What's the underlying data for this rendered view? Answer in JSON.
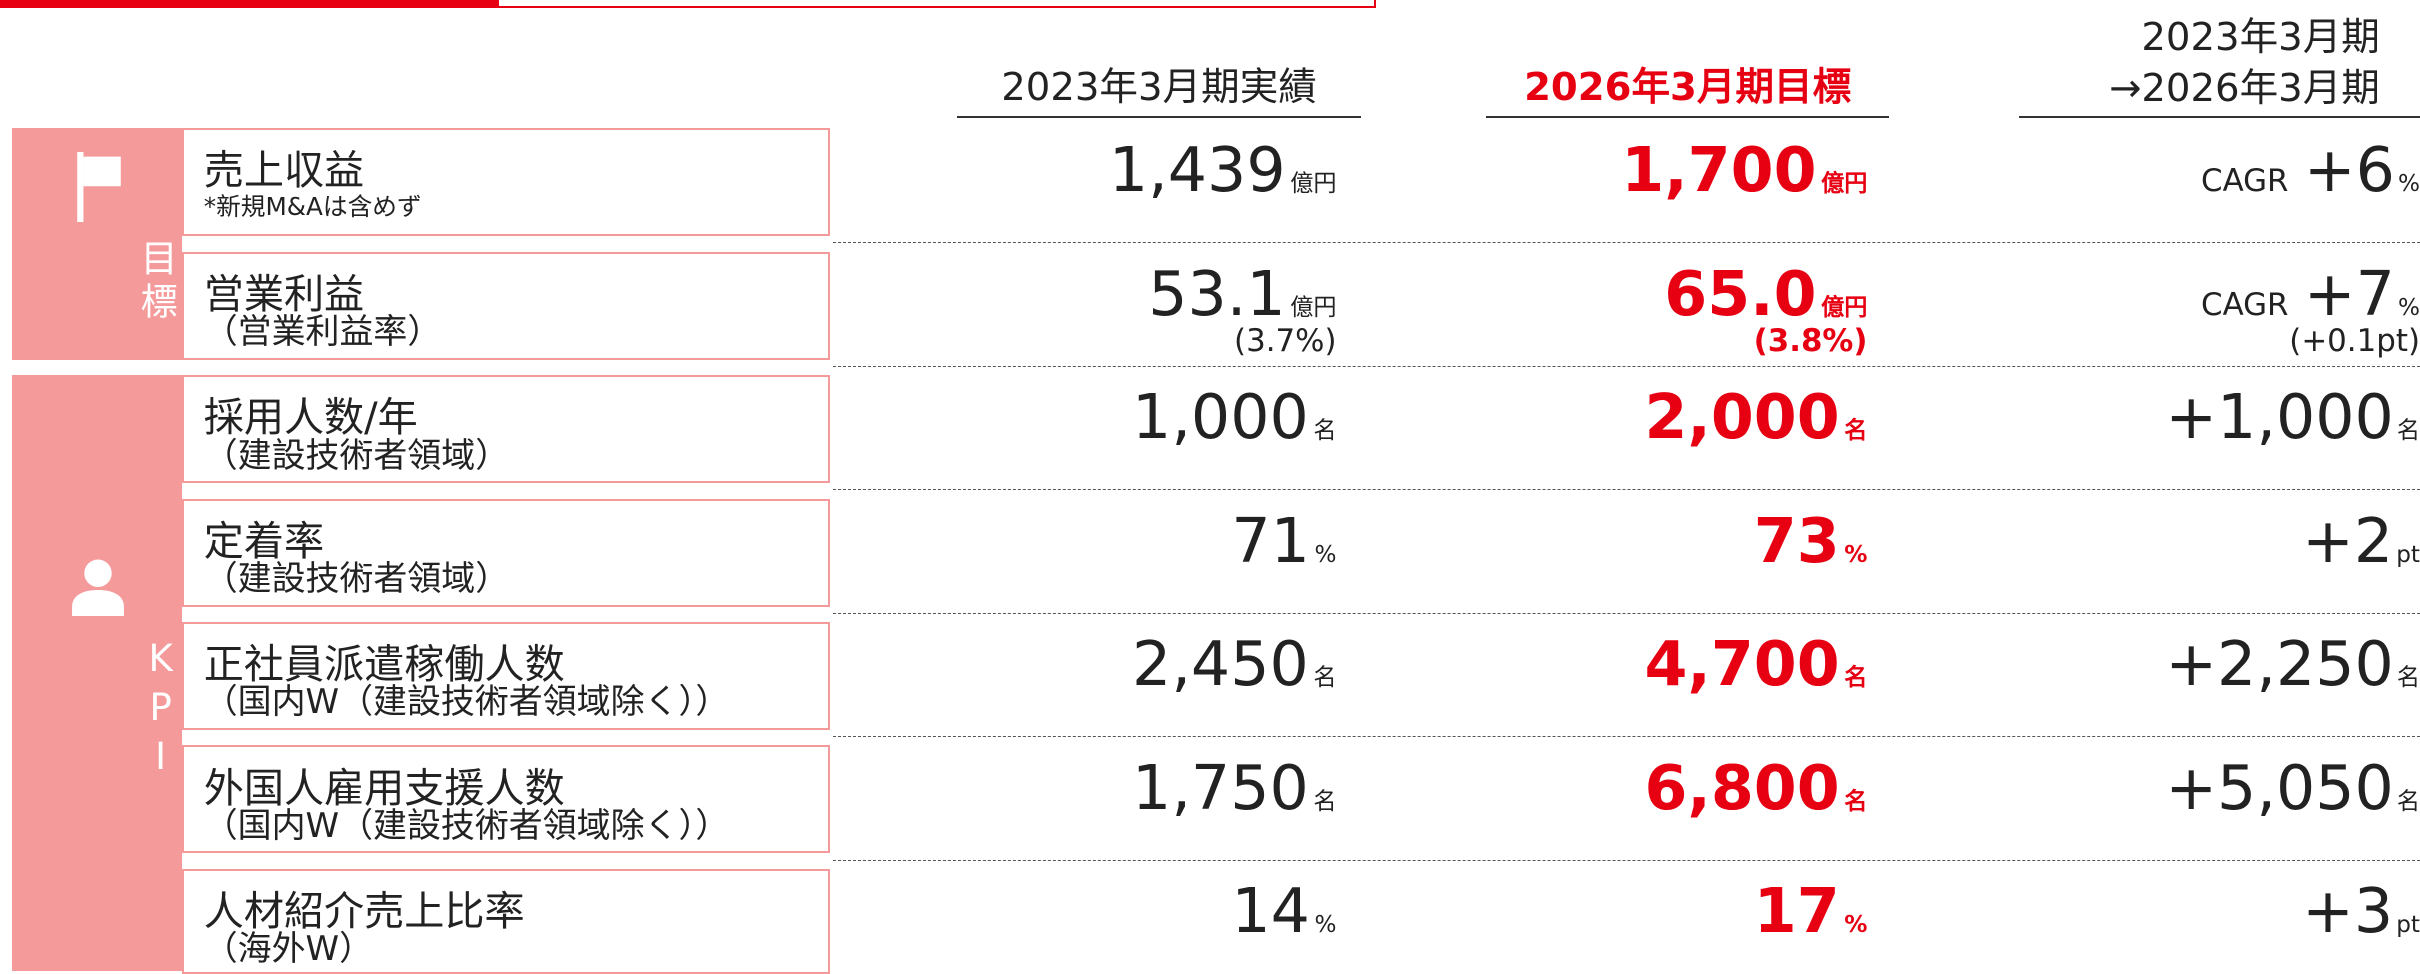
{
  "header": {
    "actual": "2023年3月期実績",
    "target": "2026年3月期目標",
    "change": [
      "2023年3月期",
      "→2026年3月期"
    ]
  },
  "groups": [
    {
      "label": "目標",
      "rows": [
        {
          "label": "売上収益",
          "note": "*新規M&Aは含めず",
          "actual": {
            "value": "1,439",
            "unit": "億円"
          },
          "target": {
            "value": "1,700",
            "unit": "億円"
          },
          "change": {
            "prefix": "CAGR",
            "value": "+6",
            "unit": "%"
          }
        },
        {
          "label": "営業利益",
          "note": "（営業利益率）",
          "actual": {
            "value": "53.1",
            "unit": "億円",
            "sub": "(3.7%)"
          },
          "target": {
            "value": "65.0",
            "unit": "億円",
            "sub": "(3.8%)"
          },
          "change": {
            "prefix": "CAGR",
            "value": "+7",
            "unit": "%",
            "sub": "(+0.1pt)"
          }
        }
      ]
    },
    {
      "label": "KPI",
      "rows": [
        {
          "label": "採用人数/年",
          "note": "（建設技術者領域）",
          "actual": {
            "value": "1,000",
            "unit": "名"
          },
          "target": {
            "value": "2,000",
            "unit": "名"
          },
          "change": {
            "value": "+1,000",
            "unit": "名"
          }
        },
        {
          "label": "定着率",
          "note": "（建設技術者領域）",
          "actual": {
            "value": "71",
            "unit": "%"
          },
          "target": {
            "value": "73",
            "unit": "%"
          },
          "change": {
            "value": "+2",
            "unit": "pt"
          }
        },
        {
          "label": "正社員派遣稼働人数",
          "note": "（国内W（建設技術者領域除く））",
          "actual": {
            "value": "2,450",
            "unit": "名"
          },
          "target": {
            "value": "4,700",
            "unit": "名"
          },
          "change": {
            "value": "+2,250",
            "unit": "名"
          }
        },
        {
          "label": "外国人雇用支援人数",
          "note": "（国内W（建設技術者領域除く））",
          "actual": {
            "value": "1,750",
            "unit": "名"
          },
          "target": {
            "value": "6,800",
            "unit": "名"
          },
          "change": {
            "value": "+5,050",
            "unit": "名"
          }
        },
        {
          "label": "人材紹介売上比率",
          "note": "（海外W）",
          "actual": {
            "value": "14",
            "unit": "%"
          },
          "target": {
            "value": "17",
            "unit": "%"
          },
          "change": {
            "value": "+3",
            "unit": "pt"
          }
        }
      ]
    }
  ]
}
